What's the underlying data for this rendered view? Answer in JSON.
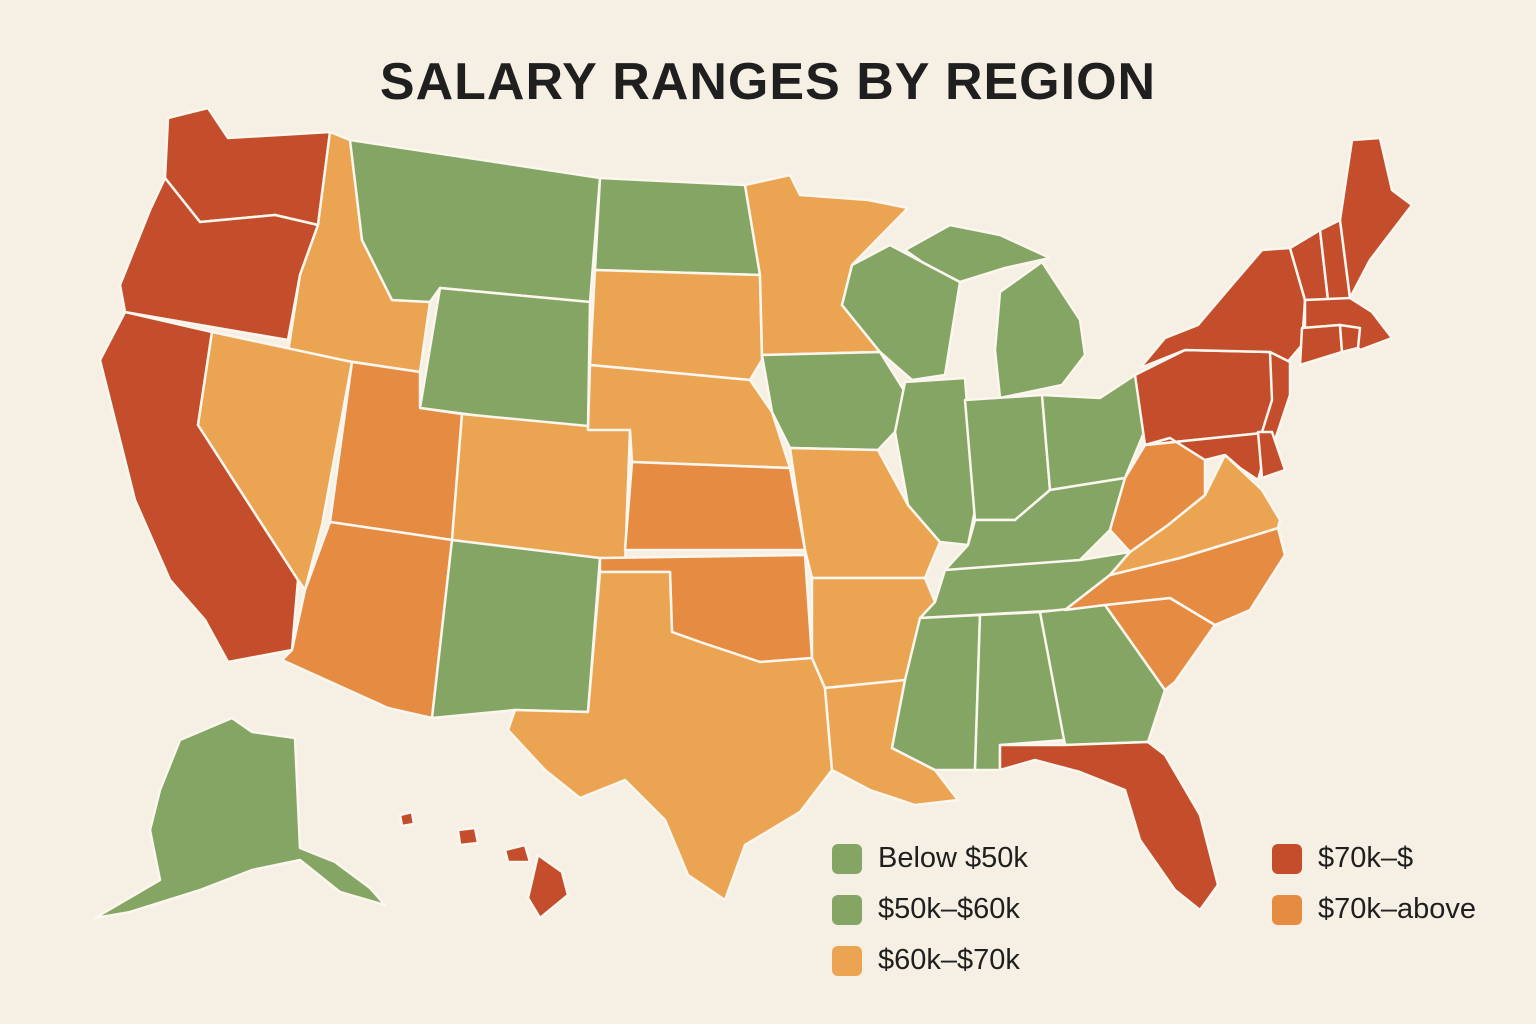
{
  "title": "SALARY RANGES BY REGION",
  "colors": {
    "green": "#84a564",
    "light_orange": "#eba452",
    "dark_orange": "#e68b42",
    "red": "#c44e2c",
    "background": "#f6efe3"
  },
  "legend": [
    {
      "label": "Below $50k",
      "color": "#84a564"
    },
    {
      "label": "$50k–$60k",
      "color": "#84a564"
    },
    {
      "label": "$60k–$70k",
      "color": "#eba452"
    },
    {
      "label": "$70k–$",
      "color": "#c44e2c"
    },
    {
      "label": "$70k–above",
      "color": "#e68b42"
    }
  ],
  "states": [
    {
      "id": "WA",
      "color": "#c44e2c"
    },
    {
      "id": "OR",
      "color": "#c44e2c"
    },
    {
      "id": "CA",
      "color": "#c44e2c"
    },
    {
      "id": "ID",
      "color": "#eba452"
    },
    {
      "id": "NV",
      "color": "#eba452"
    },
    {
      "id": "MT",
      "color": "#84a564"
    },
    {
      "id": "WY",
      "color": "#84a564"
    },
    {
      "id": "UT",
      "color": "#e68b42"
    },
    {
      "id": "AZ",
      "color": "#e68b42"
    },
    {
      "id": "CO",
      "color": "#eba452"
    },
    {
      "id": "NM",
      "color": "#84a564"
    },
    {
      "id": "ND",
      "color": "#84a564"
    },
    {
      "id": "SD",
      "color": "#eba452"
    },
    {
      "id": "NE",
      "color": "#eba452"
    },
    {
      "id": "KS",
      "color": "#e68b42"
    },
    {
      "id": "OK",
      "color": "#e68b42"
    },
    {
      "id": "TX",
      "color": "#eba452"
    },
    {
      "id": "MN",
      "color": "#eba452"
    },
    {
      "id": "IA",
      "color": "#84a564"
    },
    {
      "id": "MO",
      "color": "#eba452"
    },
    {
      "id": "AR",
      "color": "#eba452"
    },
    {
      "id": "LA",
      "color": "#eba452"
    },
    {
      "id": "WI",
      "color": "#84a564"
    },
    {
      "id": "IL",
      "color": "#84a564"
    },
    {
      "id": "MI",
      "color": "#84a564"
    },
    {
      "id": "IN",
      "color": "#84a564"
    },
    {
      "id": "OH",
      "color": "#84a564"
    },
    {
      "id": "KY",
      "color": "#84a564"
    },
    {
      "id": "TN",
      "color": "#84a564"
    },
    {
      "id": "MS",
      "color": "#84a564"
    },
    {
      "id": "AL",
      "color": "#84a564"
    },
    {
      "id": "GA",
      "color": "#84a564"
    },
    {
      "id": "FL",
      "color": "#c44e2c"
    },
    {
      "id": "SC",
      "color": "#e68b42"
    },
    {
      "id": "NC",
      "color": "#e68b42"
    },
    {
      "id": "VA",
      "color": "#eba452"
    },
    {
      "id": "WV",
      "color": "#e68b42"
    },
    {
      "id": "PA",
      "color": "#c44e2c"
    },
    {
      "id": "NY",
      "color": "#c44e2c"
    },
    {
      "id": "NJ",
      "color": "#c44e2c"
    },
    {
      "id": "DE",
      "color": "#c44e2c"
    },
    {
      "id": "MD",
      "color": "#c44e2c"
    },
    {
      "id": "CT",
      "color": "#c44e2c"
    },
    {
      "id": "RI",
      "color": "#c44e2c"
    },
    {
      "id": "MA",
      "color": "#c44e2c"
    },
    {
      "id": "VT",
      "color": "#c44e2c"
    },
    {
      "id": "NH",
      "color": "#c44e2c"
    },
    {
      "id": "ME",
      "color": "#c44e2c"
    },
    {
      "id": "AK",
      "color": "#84a564"
    },
    {
      "id": "HI",
      "color": "#c44e2c"
    }
  ]
}
